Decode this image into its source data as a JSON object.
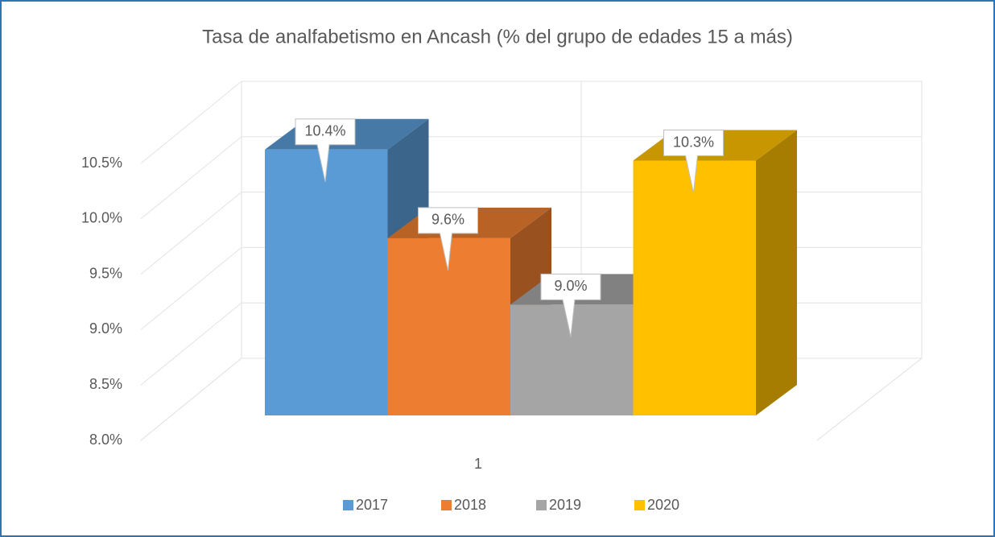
{
  "chart_data": {
    "type": "bar3d",
    "title": "Tasa de analfabetismo en Ancash (% del grupo de edades 15 a más)",
    "categories": [
      "1"
    ],
    "series": [
      {
        "name": "2017",
        "color": "#5b9bd5",
        "values": [
          10.4
        ],
        "value_labels": [
          "10.4%"
        ]
      },
      {
        "name": "2018",
        "color": "#ed7d31",
        "values": [
          9.6
        ],
        "value_labels": [
          "9.6%"
        ]
      },
      {
        "name": "2019",
        "color": "#a5a5a5",
        "values": [
          9.0
        ],
        "value_labels": [
          "9.0%"
        ]
      },
      {
        "name": "2020",
        "color": "#ffc000",
        "values": [
          10.3
        ],
        "value_labels": [
          "10.3%"
        ]
      }
    ],
    "ylim": [
      8,
      10.5
    ],
    "yticks": [
      {
        "value": 8,
        "label": "8.0%"
      },
      {
        "value": 8.5,
        "label": "8.5%"
      },
      {
        "value": 9,
        "label": "9.0%"
      },
      {
        "value": 9.5,
        "label": "9.5%"
      },
      {
        "value": 10,
        "label": "10.0%"
      },
      {
        "value": 10.5,
        "label": "10.5%"
      }
    ],
    "grid": true,
    "legend": "bottom"
  }
}
